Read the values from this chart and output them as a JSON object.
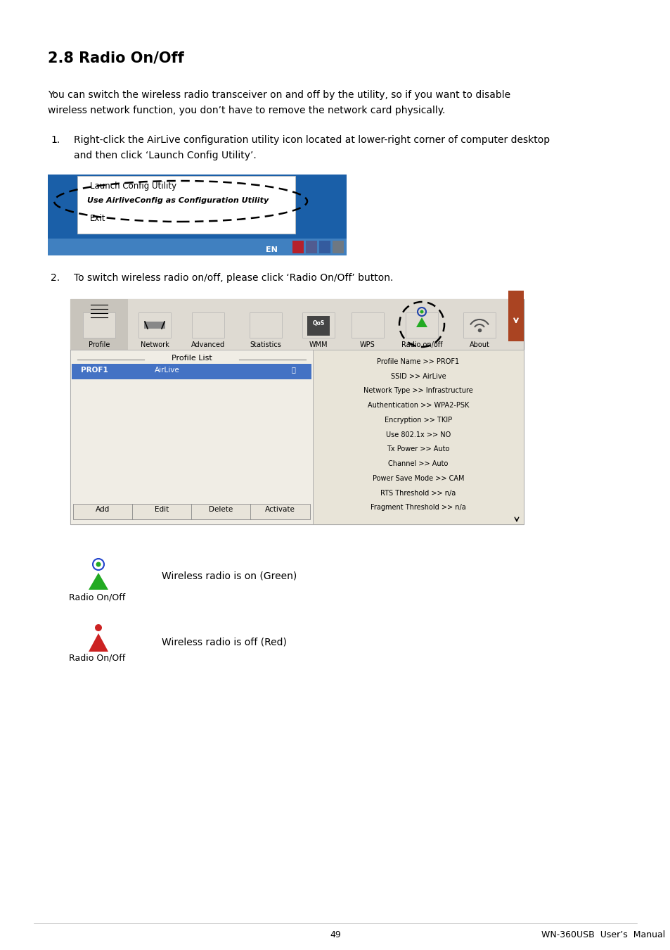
{
  "title": "2.8 Radio On/Off",
  "body_text1": "You can switch the wireless radio transceiver on and off by the utility, so if you want to disable",
  "body_text2": "wireless network function, you don’t have to remove the network card physically.",
  "step1_num": "1.",
  "step1_text1": "Right-click the AirLive configuration utility icon located at lower-right corner of computer desktop",
  "step1_text2": "and then click ‘Launch Config Utility’.",
  "step2_num": "2.",
  "step2_text": "To switch wireless radio on/off, please click ‘Radio On/Off’ button.",
  "menu_item1": "Launch Config Utility",
  "menu_item2": "Use AirliveConfig as Configuration Utility",
  "menu_item3": "Exit",
  "taskbar_text": "EN",
  "label_green": "Wireless radio is on (Green)",
  "label_red": "Wireless radio is off (Red)",
  "radio_on_label": "Radio On/Off",
  "radio_off_label": "Radio On/Off",
  "footer_page": "49",
  "footer_right": "WN-360USB  User’s  Manual",
  "bg_color": "#ffffff",
  "text_color": "#000000",
  "taskbar_blue_dark": "#1a5fa8",
  "taskbar_blue_light": "#4080c0",
  "selection_blue": "#4472c4",
  "profile_panel_bg": "#e8e4d8",
  "toolbar_bg": "#dedad2",
  "toolbar_selected_bg": "#c8c4bc",
  "content_bg": "#f0ede5",
  "info_lines": [
    "Profile Name >> PROF1",
    "SSID >> AirLive",
    "Network Type >> Infrastructure",
    "Authentication >> WPA2-PSK",
    "Encryption >> TKIP",
    "Use 802.1x >> NO",
    "Tx Power >> Auto",
    "Channel >> Auto",
    "Power Save Mode >> CAM",
    "RTS Threshold >> n/a",
    "Fragment Threshold >> n/a"
  ]
}
